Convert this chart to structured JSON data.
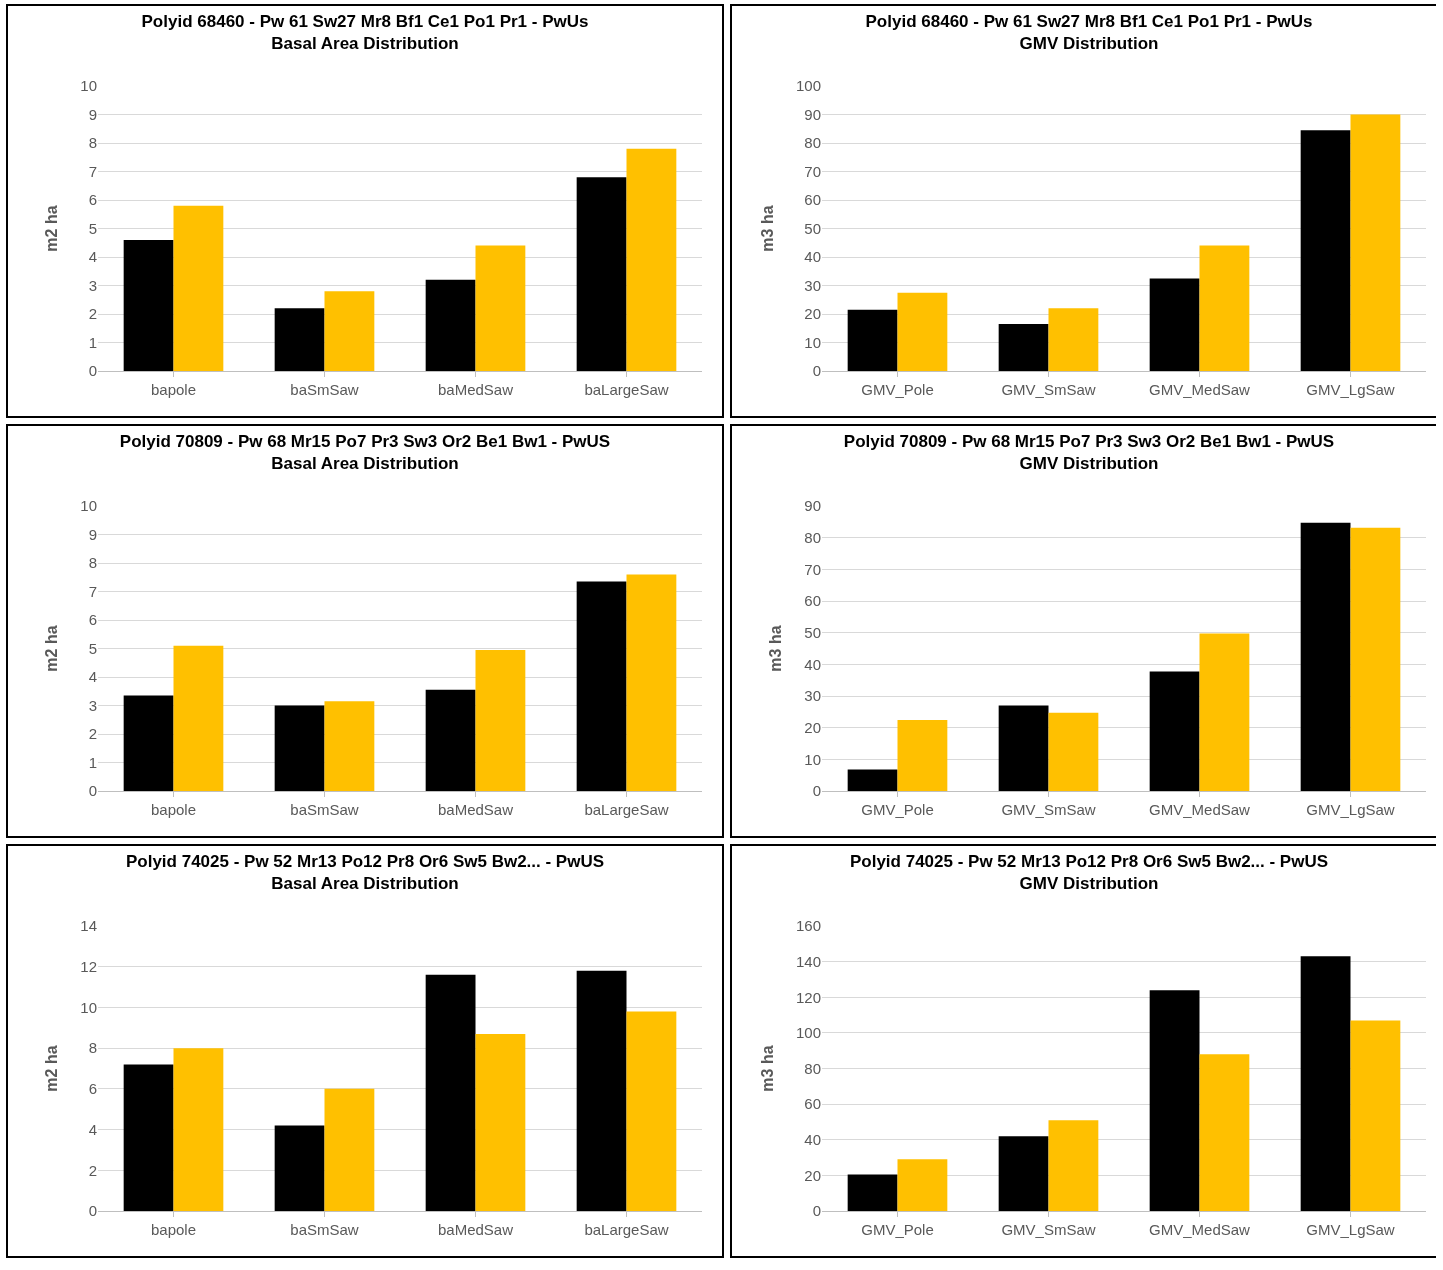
{
  "chart_data": [
    {
      "type": "bar",
      "title": "Polyid 68460 - Pw 61 Sw27 Mr8 Bf1 Ce1 Po1 Pr1 - PwUs",
      "subtitle": "Basal Area Distribution",
      "ylabel": "m2 ha",
      "categories": [
        "bapole",
        "baSmSaw",
        "baMedSaw",
        "baLargeSaw"
      ],
      "series": [
        {
          "color": "#000000",
          "values": [
            4.6,
            2.2,
            3.2,
            6.8
          ]
        },
        {
          "color": "#ffc000",
          "values": [
            5.8,
            2.8,
            4.4,
            7.8
          ]
        }
      ],
      "ylim": [
        0,
        10
      ],
      "yticks": [
        0,
        1,
        2,
        3,
        4,
        5,
        6,
        7,
        8,
        9,
        10
      ],
      "grid": "y",
      "legend": false
    },
    {
      "type": "bar",
      "title": "Polyid 68460 - Pw 61 Sw27 Mr8 Bf1 Ce1 Po1 Pr1 - PwUs",
      "subtitle": "GMV Distribution",
      "ylabel": "m3 ha",
      "categories": [
        "GMV_Pole",
        "GMV_SmSaw",
        "GMV_MedSaw",
        "GMV_LgSaw"
      ],
      "series": [
        {
          "color": "#000000",
          "values": [
            21.5,
            16.5,
            32.5,
            84.5
          ]
        },
        {
          "color": "#ffc000",
          "values": [
            27.5,
            22,
            44,
            90
          ]
        }
      ],
      "ylim": [
        0,
        100
      ],
      "yticks": [
        0,
        10,
        20,
        30,
        40,
        50,
        60,
        70,
        80,
        90,
        100
      ],
      "grid": "y",
      "legend": false
    },
    {
      "type": "bar",
      "title": "Polyid 70809 - Pw 68 Mr15 Po7 Pr3 Sw3 Or2 Be1 Bw1 - PwUS",
      "subtitle": "Basal Area Distribution",
      "ylabel": "m2 ha",
      "categories": [
        "bapole",
        "baSmSaw",
        "baMedSaw",
        "baLargeSaw"
      ],
      "series": [
        {
          "color": "#000000",
          "values": [
            3.35,
            3.0,
            3.55,
            7.35
          ]
        },
        {
          "color": "#ffc000",
          "values": [
            5.1,
            3.15,
            4.95,
            7.6
          ]
        }
      ],
      "ylim": [
        0,
        10
      ],
      "yticks": [
        0,
        1,
        2,
        3,
        4,
        5,
        6,
        7,
        8,
        9,
        10
      ],
      "grid": "y",
      "legend": false
    },
    {
      "type": "bar",
      "title": "Polyid 70809 - Pw 68 Mr15 Po7 Pr3 Sw3 Or2 Be1 Bw1 - PwUS",
      "subtitle": "GMV Distribution",
      "ylabel": "m3 ha",
      "categories": [
        "GMV_Pole",
        "GMV_SmSaw",
        "GMV_MedSaw",
        "GMV_LgSaw"
      ],
      "series": [
        {
          "color": "#000000",
          "values": [
            6.8,
            27,
            37.7,
            84.7
          ]
        },
        {
          "color": "#ffc000",
          "values": [
            22.4,
            24.7,
            49.7,
            83.1
          ]
        }
      ],
      "ylim": [
        0,
        90
      ],
      "yticks": [
        0,
        10,
        20,
        30,
        40,
        50,
        60,
        70,
        80,
        90
      ],
      "grid": "y",
      "legend": false
    },
    {
      "type": "bar",
      "title": "Polyid 74025 - Pw 52 Mr13 Po12 Pr8 Or6 Sw5 Bw2... - PwUS",
      "subtitle": "Basal Area Distribution",
      "ylabel": "m2 ha",
      "categories": [
        "bapole",
        "baSmSaw",
        "baMedSaw",
        "baLargeSaw"
      ],
      "series": [
        {
          "color": "#000000",
          "values": [
            7.2,
            4.2,
            11.6,
            11.8
          ]
        },
        {
          "color": "#ffc000",
          "values": [
            8.0,
            6.0,
            8.7,
            9.8
          ]
        }
      ],
      "ylim": [
        0,
        14
      ],
      "yticks": [
        0,
        2,
        4,
        6,
        8,
        10,
        12,
        14
      ],
      "grid": "y",
      "legend": false
    },
    {
      "type": "bar",
      "title": "Polyid 74025 - Pw 52 Mr13 Po12 Pr8 Or6 Sw5 Bw2... - PwUS",
      "subtitle": "GMV Distribution",
      "ylabel": "m3 ha",
      "categories": [
        "GMV_Pole",
        "GMV_SmSaw",
        "GMV_MedSaw",
        "GMV_LgSaw"
      ],
      "series": [
        {
          "color": "#000000",
          "values": [
            20.5,
            42,
            124,
            143
          ]
        },
        {
          "color": "#ffc000",
          "values": [
            29,
            51,
            88,
            107
          ]
        }
      ],
      "ylim": [
        0,
        160
      ],
      "yticks": [
        0,
        20,
        40,
        60,
        80,
        100,
        120,
        140,
        160
      ],
      "grid": "y",
      "legend": false
    }
  ]
}
